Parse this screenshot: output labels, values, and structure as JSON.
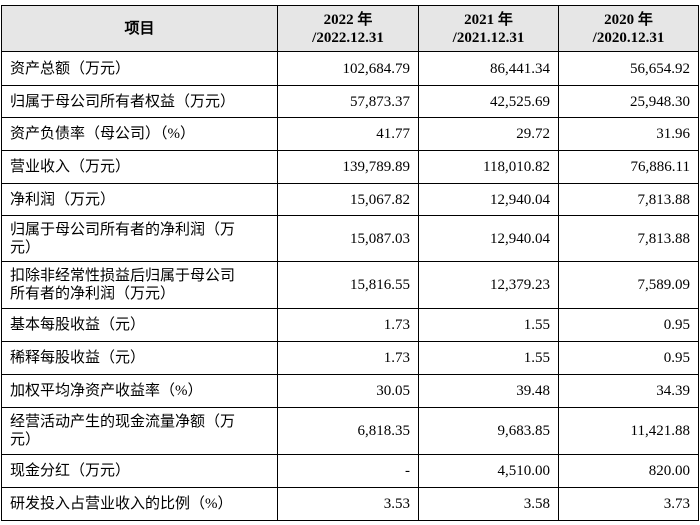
{
  "table": {
    "header": [
      [
        "项目"
      ],
      [
        "2022 年",
        "/2022.12.31"
      ],
      [
        "2021 年",
        "/2021.12.31"
      ],
      [
        "2020 年",
        "/2020.12.31"
      ]
    ],
    "rows": [
      [
        [
          "资产总额（万元）"
        ],
        "102,684.79",
        "86,441.34",
        "56,654.92"
      ],
      [
        [
          "归属于母公司所有者权益（万元）"
        ],
        "57,873.37",
        "42,525.69",
        "25,948.30"
      ],
      [
        [
          "资产负债率（母公司）（%）"
        ],
        "41.77",
        "29.72",
        "31.96"
      ],
      [
        [
          "营业收入（万元）"
        ],
        "139,789.89",
        "118,010.82",
        "76,886.11"
      ],
      [
        [
          "净利润（万元）"
        ],
        "15,067.82",
        "12,940.04",
        "7,813.88"
      ],
      [
        [
          "归属于母公司所有者的净利润（万",
          "元）"
        ],
        "15,087.03",
        "12,940.04",
        "7,813.88"
      ],
      [
        [
          "扣除非经常性损益后归属于母公司",
          "所有者的净利润（万元）"
        ],
        "15,816.55",
        "12,379.23",
        "7,589.09"
      ],
      [
        [
          "基本每股收益（元）"
        ],
        "1.73",
        "1.55",
        "0.95"
      ],
      [
        [
          "稀释每股收益（元）"
        ],
        "1.73",
        "1.55",
        "0.95"
      ],
      [
        [
          "加权平均净资产收益率（%）"
        ],
        "30.05",
        "39.48",
        "34.39"
      ],
      [
        [
          "经营活动产生的现金流量净额（万",
          "元）"
        ],
        "6,818.35",
        "9,683.85",
        "11,421.88"
      ],
      [
        [
          "现金分红（万元）"
        ],
        "-",
        "4,510.00",
        "820.00"
      ],
      [
        [
          "研发投入占营业收入的比例（%）"
        ],
        "3.53",
        "3.58",
        "3.73"
      ]
    ]
  }
}
